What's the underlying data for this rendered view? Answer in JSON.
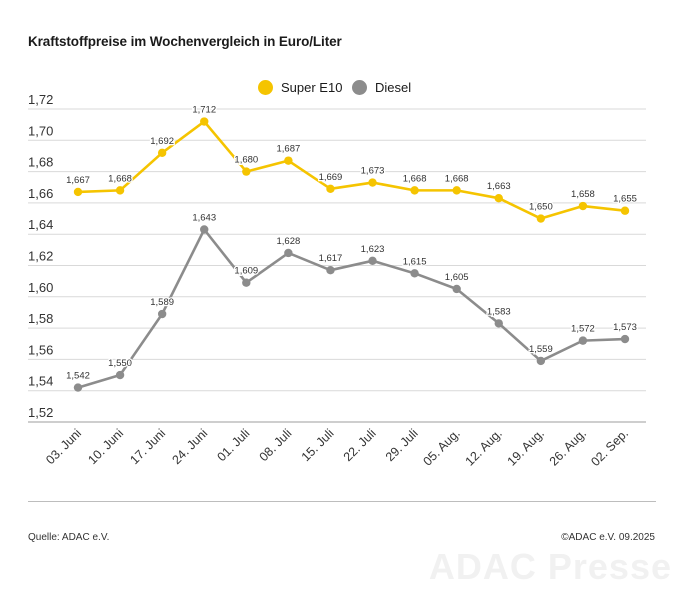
{
  "title": "Kraftstoffpreise im Wochenvergleich in Euro/Liter",
  "legend": [
    {
      "label": "Super E10",
      "color": "#f5c400"
    },
    {
      "label": "Diesel",
      "color": "#8c8c8c"
    }
  ],
  "footer": {
    "source": "Quelle: ADAC e.V.",
    "copyright": "©ADAC e.V. 09.2025"
  },
  "watermark": "ADAC Presse",
  "chart_data": {
    "type": "line",
    "title": "Kraftstoffpreise im Wochenvergleich in Euro/Liter",
    "xlabel": "",
    "ylabel": "",
    "categories": [
      "03. Juni",
      "10. Juni",
      "17. Juni",
      "24. Juni",
      "01. Juli",
      "08. Juli",
      "15. Juli",
      "22. Juli",
      "29. Juli",
      "05. Aug.",
      "12. Aug.",
      "19. Aug.",
      "26. Aug.",
      "02. Sep."
    ],
    "series": [
      {
        "name": "Super E10",
        "color": "#f5c400",
        "values": [
          1.667,
          1.668,
          1.692,
          1.712,
          1.68,
          1.687,
          1.669,
          1.673,
          1.668,
          1.668,
          1.663,
          1.65,
          1.658,
          1.655
        ],
        "labels": [
          "1,667",
          "1,668",
          "1,692",
          "1,712",
          "1,680",
          "1,687",
          "1,669",
          "1,673",
          "1,668",
          "1,668",
          "1,663",
          "1,650",
          "1,658",
          "1,655"
        ]
      },
      {
        "name": "Diesel",
        "color": "#8c8c8c",
        "values": [
          1.542,
          1.55,
          1.589,
          1.643,
          1.609,
          1.628,
          1.617,
          1.623,
          1.615,
          1.605,
          1.583,
          1.559,
          1.572,
          1.573
        ],
        "labels": [
          "1,542",
          "1,550",
          "1,589",
          "1,643",
          "1,609",
          "1,628",
          "1,617",
          "1,623",
          "1,615",
          "1,605",
          "1,583",
          "1,559",
          "1,572",
          "1,573"
        ]
      }
    ],
    "ylim": [
      1.52,
      1.72
    ],
    "yticks": [
      1.52,
      1.54,
      1.56,
      1.58,
      1.6,
      1.62,
      1.64,
      1.66,
      1.68,
      1.7,
      1.72
    ],
    "ytick_labels": [
      "1,52",
      "1,54",
      "1,56",
      "1,58",
      "1,60",
      "1,62",
      "1,64",
      "1,66",
      "1,68",
      "1,70",
      "1,72"
    ],
    "grid": true,
    "legend_position": "top-center"
  }
}
